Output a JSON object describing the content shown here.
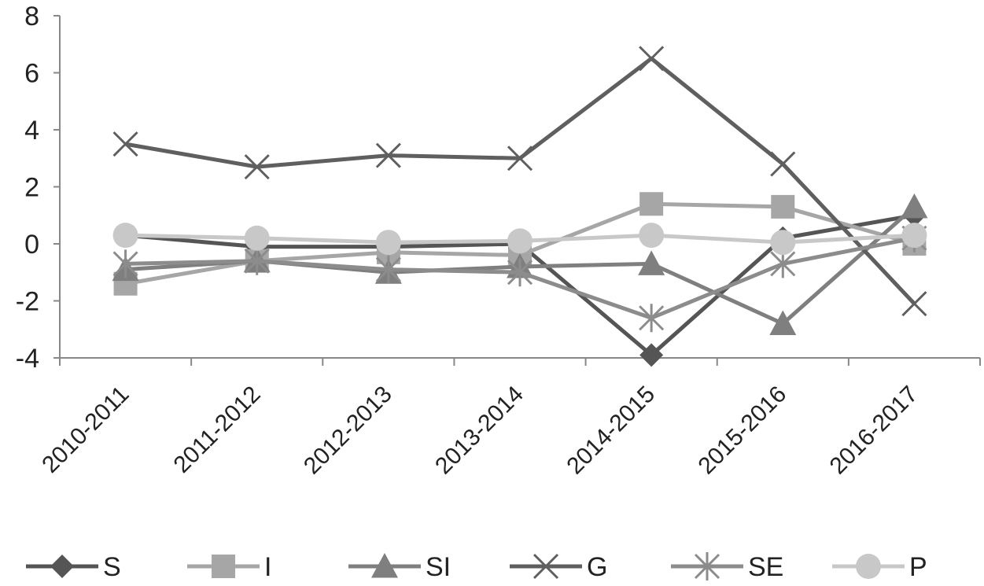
{
  "chart_data": {
    "type": "line",
    "title": "",
    "xlabel": "",
    "ylabel": "",
    "ylim": [
      -4,
      8
    ],
    "yticks": [
      -4,
      -2,
      0,
      2,
      4,
      6,
      8
    ],
    "ytick_labels": [
      "-4",
      "-2",
      "0",
      "2",
      "4",
      "6",
      "8"
    ],
    "grid": false,
    "legend_position": "bottom",
    "categories": [
      "2010-2011",
      "2011-2012",
      "2012-2013",
      "2013-2014",
      "2014-2015",
      "2015-2016",
      "2016-2017"
    ],
    "series": [
      {
        "name": "S",
        "marker": "diamond",
        "color": "#555555",
        "values": [
          0.3,
          -0.1,
          -0.1,
          0.0,
          -3.9,
          0.2,
          1.0
        ]
      },
      {
        "name": "I",
        "marker": "square",
        "color": "#a6a6a6",
        "values": [
          -1.4,
          -0.6,
          -0.3,
          -0.4,
          1.4,
          1.3,
          0.0
        ]
      },
      {
        "name": "SI",
        "marker": "triangle",
        "color": "#7f7f7f",
        "values": [
          -0.9,
          -0.6,
          -1.0,
          -0.8,
          -0.7,
          -2.8,
          1.3
        ]
      },
      {
        "name": "G",
        "marker": "x",
        "color": "#5f5f5f",
        "values": [
          3.5,
          2.7,
          3.1,
          3.0,
          6.5,
          2.8,
          -2.1
        ]
      },
      {
        "name": "SE",
        "marker": "star",
        "color": "#8c8c8c",
        "values": [
          -0.7,
          -0.6,
          -0.9,
          -1.0,
          -2.6,
          -0.7,
          0.2
        ]
      },
      {
        "name": "P",
        "marker": "circle",
        "color": "#c8c8c8",
        "values": [
          0.3,
          0.2,
          0.05,
          0.1,
          0.3,
          0.05,
          0.3
        ]
      }
    ]
  }
}
